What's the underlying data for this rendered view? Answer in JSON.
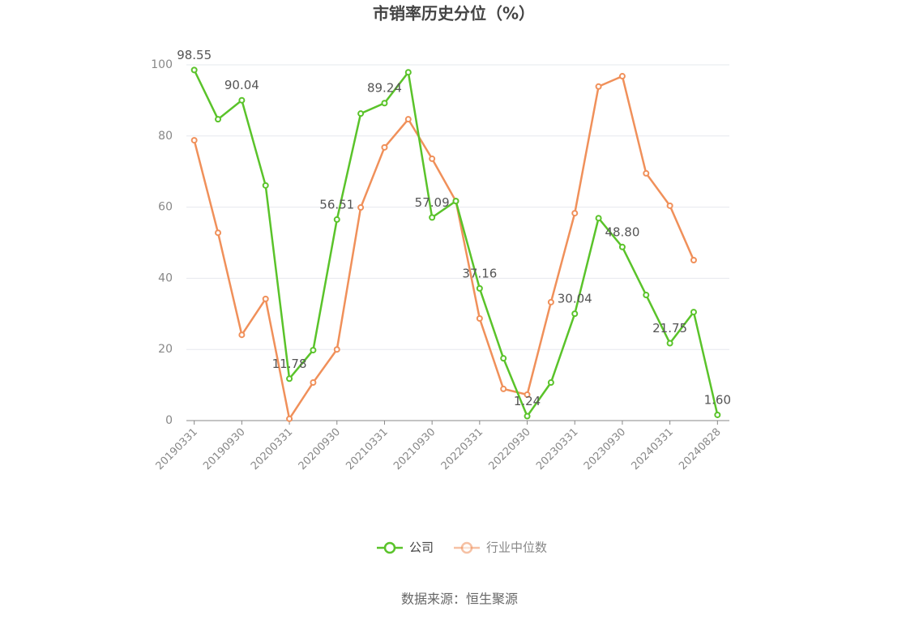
{
  "chart_data": {
    "type": "line",
    "title": "市销率历史分位（%）",
    "categories": [
      "20190331",
      null,
      "20190930",
      null,
      "20200331",
      null,
      "20200930",
      null,
      "20210331",
      null,
      "20210930",
      null,
      "20220331",
      null,
      "20220930",
      null,
      "20230331",
      null,
      "20230930",
      null,
      "20240331",
      null,
      "20240828"
    ],
    "series": [
      {
        "name": "公司",
        "color": "#5ac32a",
        "values": [
          98.55,
          84.7,
          90.04,
          66.1,
          11.78,
          19.8,
          56.51,
          86.3,
          89.24,
          97.9,
          57.09,
          61.7,
          37.16,
          17.5,
          1.24,
          10.7,
          30.04,
          56.9,
          48.8,
          35.3,
          21.75,
          30.5,
          1.6
        ],
        "value_labels": [
          "98.55",
          null,
          "90.04",
          null,
          "11.78",
          null,
          "56.51",
          null,
          "89.24",
          null,
          "57.09",
          null,
          "37.16",
          null,
          "1.24",
          null,
          "30.04",
          null,
          "48.80",
          null,
          "21.75",
          null,
          "1.60"
        ]
      },
      {
        "name": "行业中位数",
        "color": "#f0905a",
        "values": [
          78.8,
          52.8,
          24.1,
          34.2,
          0.5,
          10.7,
          20.0,
          59.9,
          76.8,
          84.7,
          73.6,
          61.7,
          28.7,
          8.9,
          7.3,
          33.3,
          58.3,
          93.9,
          96.8,
          69.5,
          60.4,
          45.1,
          null
        ]
      }
    ],
    "ylim": [
      0,
      100
    ],
    "yticks": [
      0,
      20,
      40,
      60,
      80,
      100
    ],
    "grid": true,
    "legend": "bottom",
    "source": "数据来源：恒生聚源"
  }
}
